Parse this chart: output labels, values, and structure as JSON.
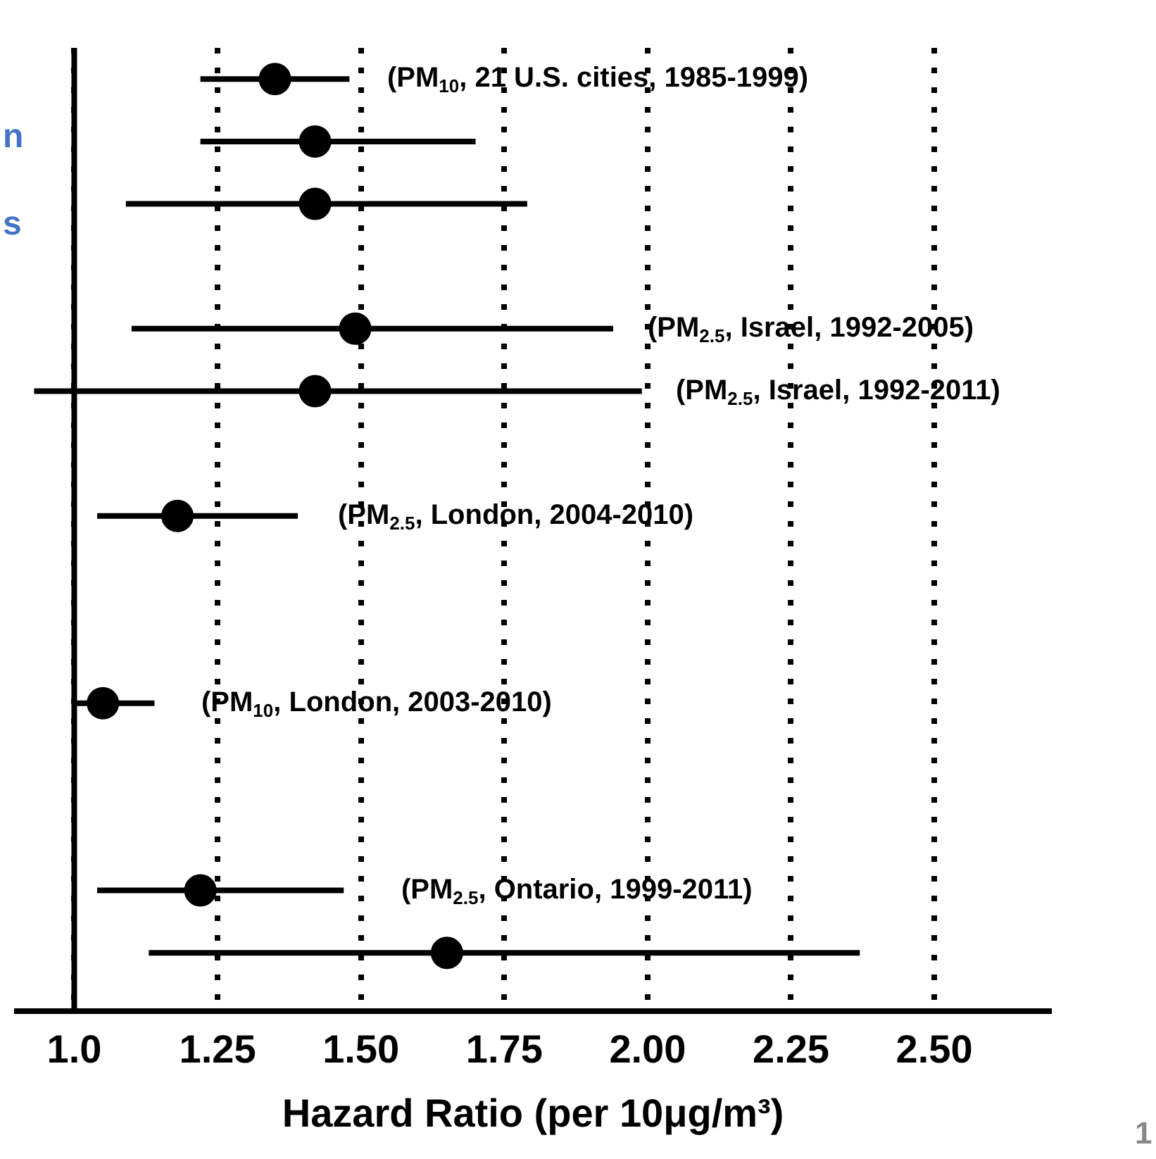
{
  "chart_data": {
    "type": "scatter",
    "orientation": "horizontal",
    "xlabel": "Hazard Ratio (per 10μg/m³)",
    "categories": [
      null,
      null,
      null,
      null,
      null,
      null,
      null,
      null,
      null,
      null,
      null,
      null,
      null,
      null,
      null
    ],
    "values": [
      1.35,
      1.42,
      1.42,
      null,
      1.49,
      1.42,
      null,
      1.18,
      null,
      null,
      1.05,
      null,
      null,
      1.22,
      1.65
    ],
    "errors": [
      [
        1.22,
        1.48
      ],
      [
        1.22,
        1.7
      ],
      [
        1.09,
        1.79
      ],
      null,
      [
        1.1,
        1.94
      ],
      [
        0.93,
        1.99
      ],
      null,
      [
        1.04,
        1.39
      ],
      null,
      null,
      [
        1.0,
        1.14
      ],
      null,
      null,
      [
        1.04,
        1.47
      ],
      [
        1.13,
        2.37
      ]
    ],
    "color": "#000000",
    "marker": "circle",
    "xlim": [
      0.9,
      2.7
    ],
    "xticks": [
      {
        "value": 1,
        "label": "1.0"
      },
      1.25,
      {
        "value": 1.5,
        "label": "1.50"
      },
      1.75,
      {
        "value": 2,
        "label": "2.00"
      },
      2.25,
      {
        "value": 2.5,
        "label": "2.50"
      }
    ],
    "grid": "x",
    "ref_lines": [
      {
        "axis": "x",
        "value": 1,
        "color": "#000000"
      }
    ],
    "annotations": [
      "n",
      "s",
      "1",
      "(PM$_{10}$, 21 U.S. cities, 1985-1999)",
      "(PM$_{2.5}$, Israel, 1992-2005)",
      "(PM$_{2.5}$, Israel, 1992-2011)",
      "(PM$_{2.5}$, London, 2004-2010)",
      "(PM$_{10}$, London, 2003-2010)",
      "(PM$_{2.5}$, Ontario, 1999-2011)"
    ]
  }
}
